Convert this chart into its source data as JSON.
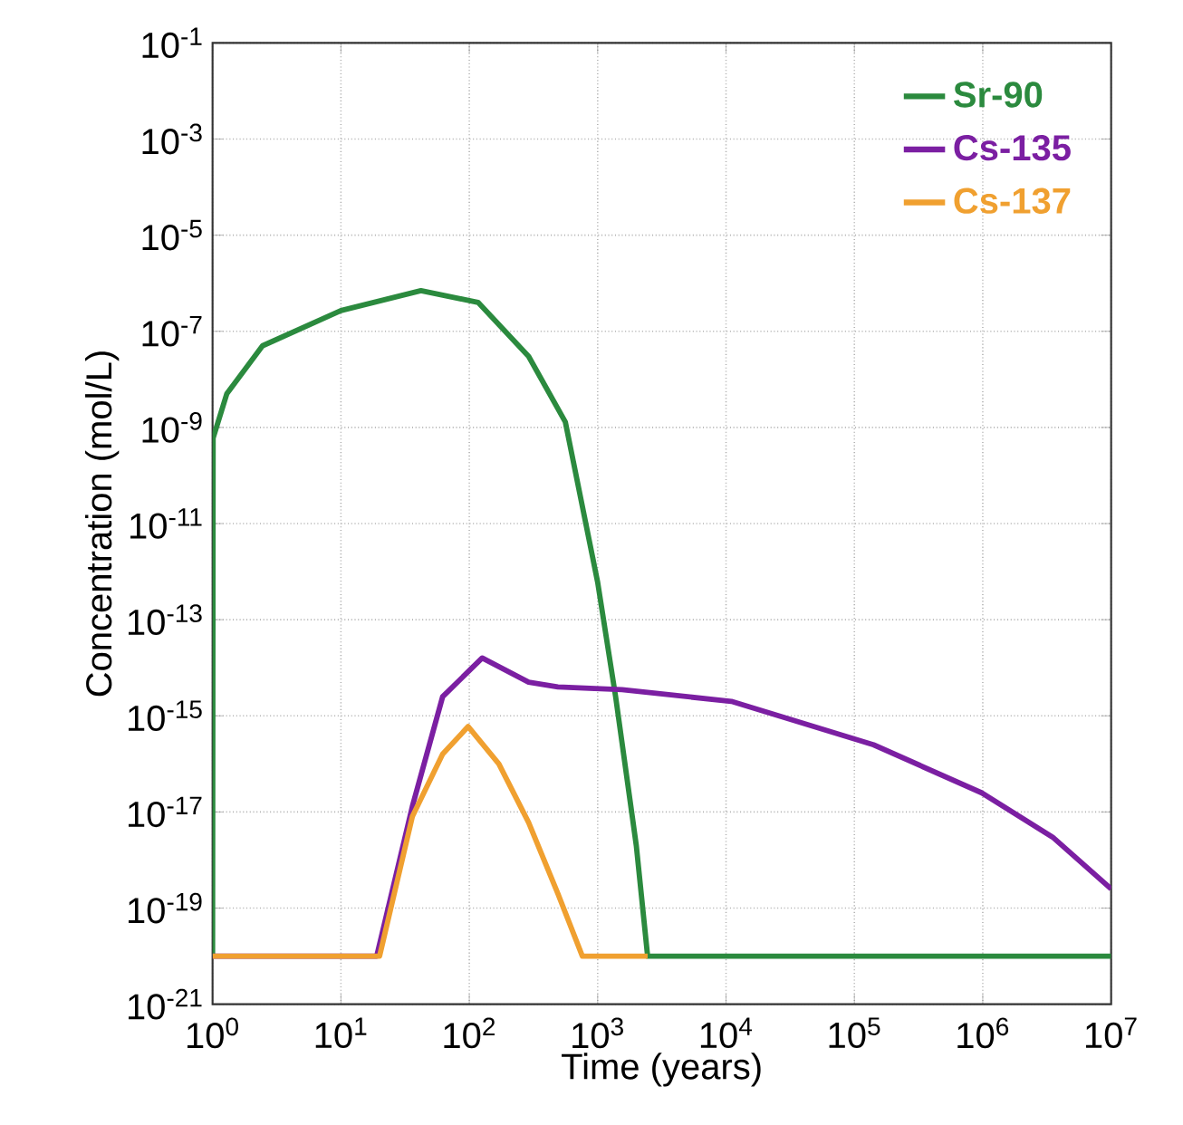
{
  "chart_data": {
    "type": "line",
    "xlabel": "Time (years)",
    "ylabel": "Concentration (mol/L)",
    "log": "xy",
    "xlim": [
      1,
      10000000
    ],
    "ylim": [
      1e-21,
      0.1
    ],
    "xticks": [
      {
        "value": 1,
        "label": "10$^{0}$"
      },
      {
        "value": 10,
        "label": "10$^{1}$"
      },
      {
        "value": 100,
        "label": "10$^{2}$"
      },
      {
        "value": 1000,
        "label": "10$^{3}$"
      },
      {
        "value": 10000,
        "label": "10$^{4}$"
      },
      {
        "value": 100000,
        "label": "10$^{5}$"
      },
      {
        "value": 1000000,
        "label": "10$^{6}$"
      },
      {
        "value": 10000000,
        "label": "10$^{7}$"
      }
    ],
    "yticks": [
      {
        "value": 1e-21,
        "label": "10$^{-21}$"
      },
      {
        "value": 1e-19,
        "label": "10$^{-19}$"
      },
      {
        "value": 1e-17,
        "label": "10$^{-17}$"
      },
      {
        "value": 1e-15,
        "label": "10$^{-15}$"
      },
      {
        "value": 1e-13,
        "label": "10$^{-13}$"
      },
      {
        "value": 1e-11,
        "label": "10$^{-11}$"
      },
      {
        "value": 1e-09,
        "label": "10$^{-9}$"
      },
      {
        "value": 1e-07,
        "label": "10$^{-7}$"
      },
      {
        "value": 1e-05,
        "label": "10$^{-5}$"
      },
      {
        "value": 0.001,
        "label": "10$^{-3}$"
      },
      {
        "value": 0.1,
        "label": "10$^{-1}$"
      }
    ],
    "grid": true,
    "legend": "top right",
    "marker": "none",
    "line_style": "solid",
    "series": [
      {
        "name": "Sr-90",
        "color": "#2b8a3e",
        "x": [
          1,
          1.01,
          1.29,
          2.45,
          10,
          42,
          117,
          290,
          560,
          1000,
          1380,
          2000,
          2450,
          10000000
        ],
        "values": [
          1e-20,
          6e-10,
          5e-09,
          5e-08,
          2.7e-07,
          7e-07,
          4e-07,
          3e-08,
          1.3e-09,
          6e-13,
          2.5e-15,
          2e-18,
          1e-20,
          1e-20
        ]
      },
      {
        "name": "Cs-135",
        "color": "#7b1fa2",
        "x": [
          1,
          19,
          36,
          62,
          126,
          290,
          490,
          1550,
          11000,
          141000,
          980000,
          3500000,
          10000000
        ],
        "values": [
          1e-20,
          1e-20,
          1.3e-17,
          2.5e-15,
          1.6e-14,
          5e-15,
          4e-15,
          3.5e-15,
          2e-15,
          2.5e-16,
          2.5e-17,
          3e-18,
          2.5e-19
        ]
      },
      {
        "name": "Cs-137",
        "color": "#f0a030",
        "x": [
          1,
          20,
          36,
          62,
          98,
          170,
          290,
          490,
          760,
          2450
        ],
        "values": [
          1e-20,
          1e-20,
          8e-18,
          1.6e-16,
          6e-16,
          1e-16,
          6e-18,
          2e-19,
          1e-20,
          1e-20
        ]
      }
    ]
  }
}
